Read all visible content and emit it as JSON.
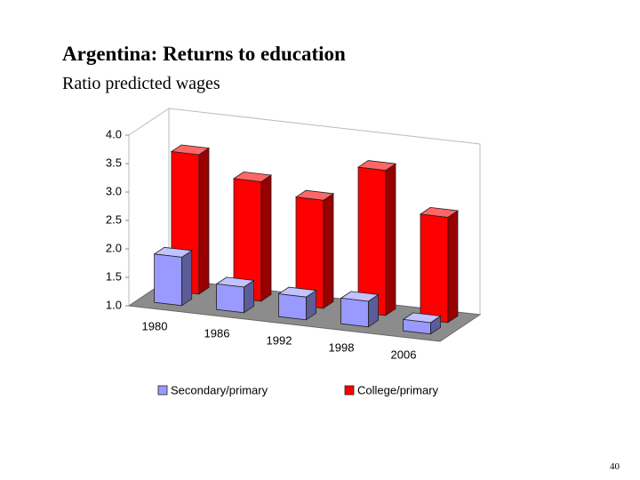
{
  "page_number": "40",
  "chart_data": {
    "type": "bar3d",
    "title": "Argentina: Returns to education",
    "subtitle": "Ratio predicted wages",
    "categories": [
      "1980",
      "1986",
      "1992",
      "1998",
      "2006"
    ],
    "series": [
      {
        "name": "Secondary/primary",
        "color": "#9999ff",
        "values": [
          1.85,
          1.45,
          1.4,
          1.45,
          1.2
        ]
      },
      {
        "name": "College/primary",
        "color": "#ff0000",
        "values": [
          3.45,
          3.1,
          2.9,
          3.55,
          2.85
        ]
      }
    ],
    "ylim": [
      1,
      4
    ],
    "yticks": [
      {
        "value": 1,
        "label": "1.0"
      },
      1.5,
      {
        "value": 2,
        "label": "2.0"
      },
      2.5,
      {
        "value": 3,
        "label": "3.0"
      },
      3.5,
      {
        "value": 4,
        "label": "4.0"
      }
    ],
    "legend": "bottom"
  }
}
